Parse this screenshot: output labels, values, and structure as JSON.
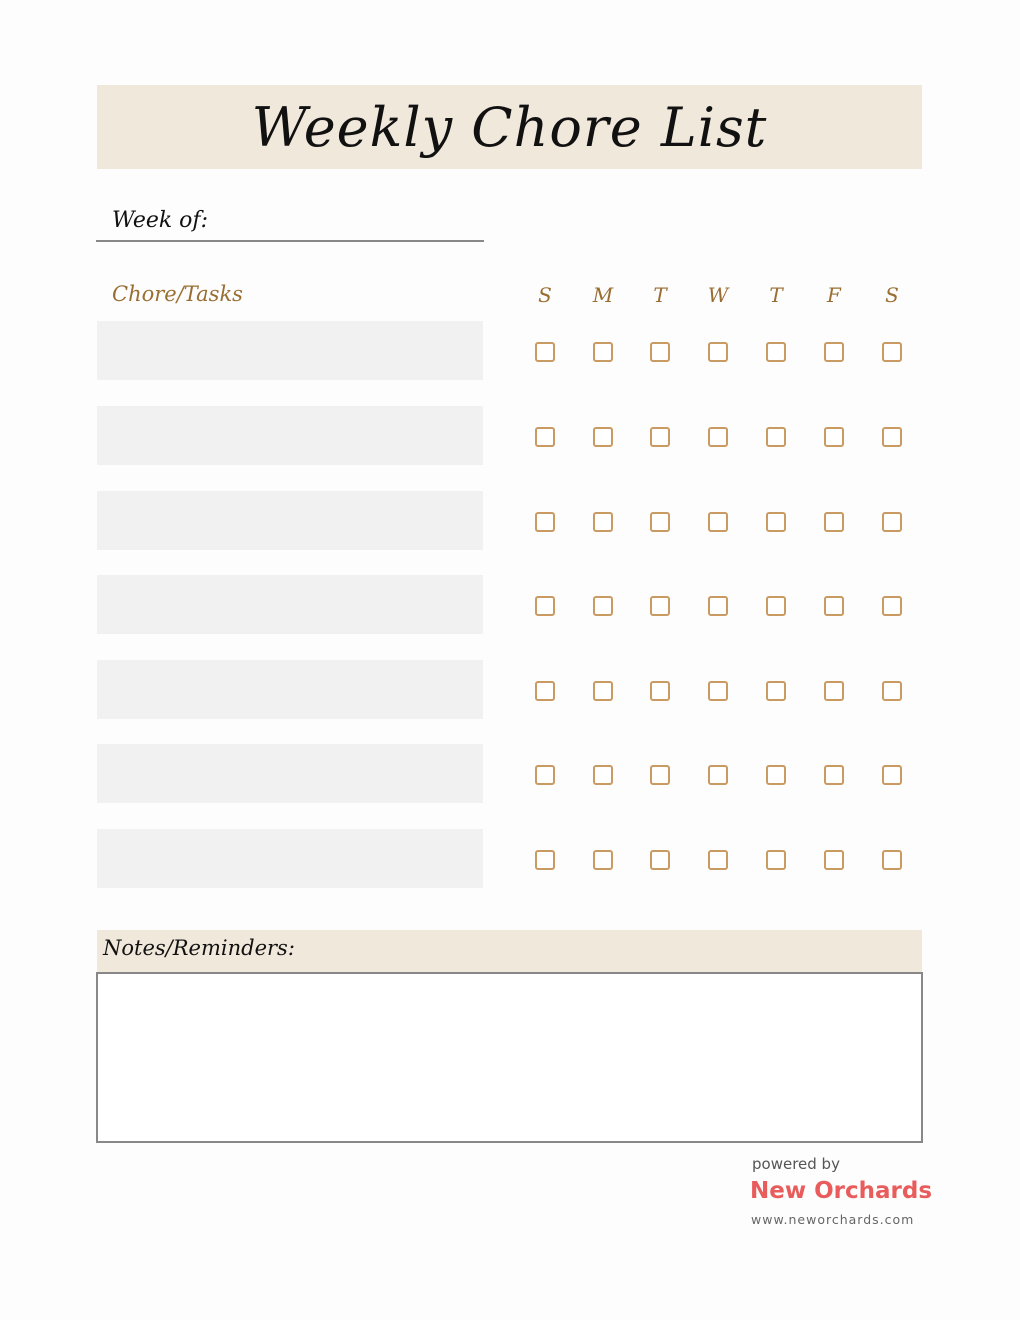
{
  "title": "Weekly Chore List",
  "week_of_label": "Week of:",
  "chores_label": "Chore/Tasks",
  "days": [
    "S",
    "M",
    "T",
    "W",
    "T",
    "F",
    "S"
  ],
  "row_count": 7,
  "notes_label": "Notes/Reminders:",
  "footer": {
    "powered_by": "powered by",
    "brand": "New Orchards",
    "url": "www.neworchards.com"
  },
  "colors": {
    "accent": "#9a6e32",
    "checkbox": "#c99a62",
    "band": "#f1e8dc",
    "row": "#f1f1f1",
    "brand": "#e85c5c"
  }
}
